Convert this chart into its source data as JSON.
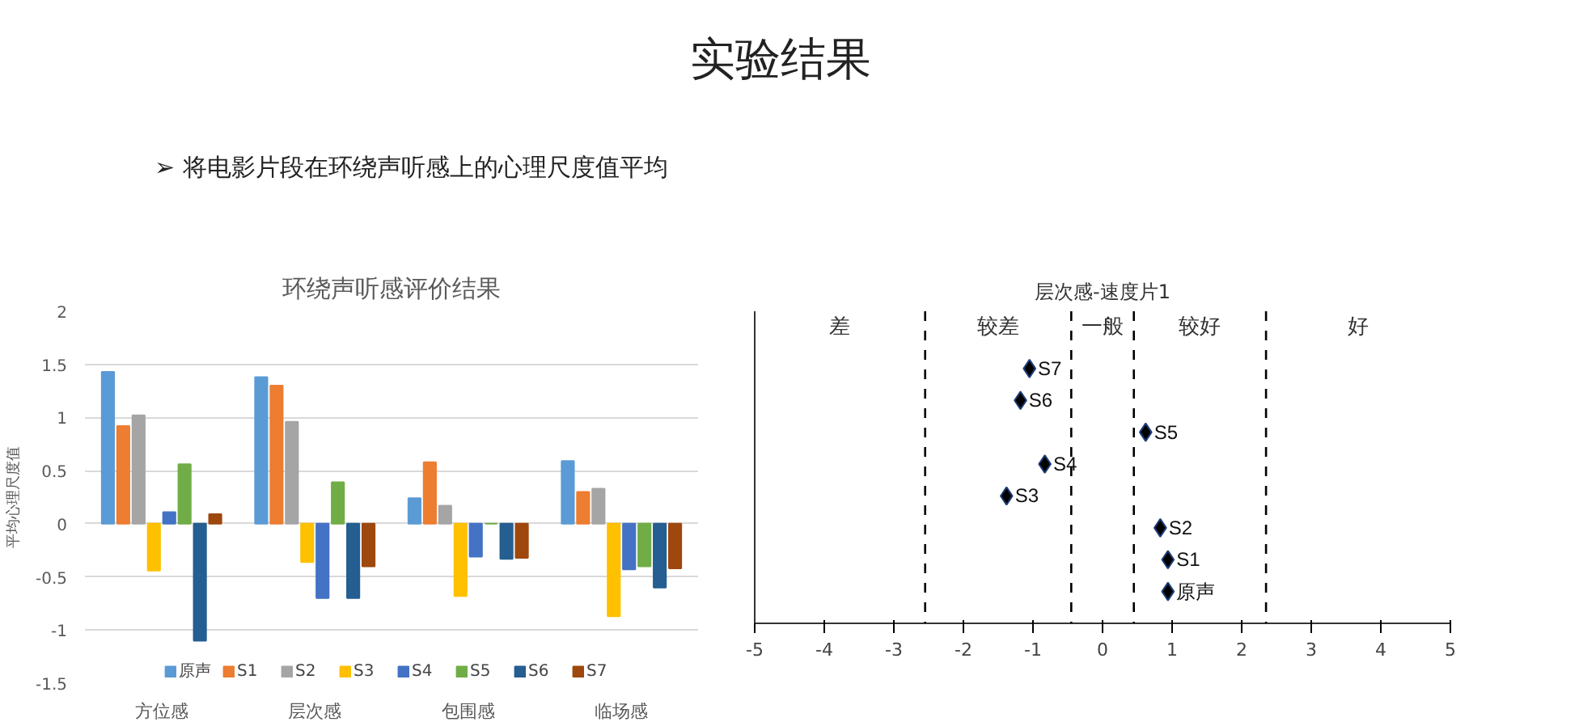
{
  "chart_data": [
    {
      "type": "other",
      "title": "实验结果",
      "annotations": [
        "➢ 将电影片段在环绕声听感上的心理尺度值平均"
      ]
    },
    {
      "type": "bar",
      "title": "环绕声听感评价结果",
      "ylabel": "平均心理尺度值",
      "categories": [
        "方位感",
        "层次感",
        "包围感",
        "临场感"
      ],
      "series": [
        {
          "name": "原声",
          "color": "#5b9bd5",
          "values": [
            1.43,
            1.38,
            0.24,
            0.59
          ]
        },
        {
          "name": "S1",
          "color": "#ed7d31",
          "values": [
            0.92,
            1.3,
            0.58,
            0.3
          ]
        },
        {
          "name": "S2",
          "color": "#a5a5a5",
          "values": [
            1.02,
            0.96,
            0.17,
            0.33
          ]
        },
        {
          "name": "S3",
          "color": "#ffc000",
          "values": [
            -0.44,
            -0.36,
            -0.68,
            -0.87
          ]
        },
        {
          "name": "S4",
          "color": "#4472c4",
          "values": [
            0.11,
            -0.7,
            -0.31,
            -0.43
          ]
        },
        {
          "name": "S5",
          "color": "#70ad47",
          "values": [
            0.56,
            0.39,
            0,
            -0.4
          ]
        },
        {
          "name": "S6",
          "color": "#255e91",
          "values": [
            -1.1,
            -0.7,
            -0.33,
            -0.6
          ]
        },
        {
          "name": "S7",
          "color": "#9e480e",
          "values": [
            0.09,
            -0.4,
            -0.32,
            -0.42
          ]
        }
      ],
      "ylim": [
        -1.5,
        2
      ],
      "yticks": [
        -1.5,
        {
          "value": -1,
          "label": "-1"
        },
        -0.5,
        0,
        0.5,
        1,
        1.5,
        2
      ],
      "grid": "y",
      "legend": "bottom"
    },
    {
      "type": "scatter",
      "title": "层次感-速度片1",
      "orientation": "horizontal",
      "categories": [
        "S7",
        "S6",
        "S5",
        "S4",
        "S3",
        "S2",
        "S1",
        "原声"
      ],
      "values": [
        -1.05,
        -1.18,
        0.62,
        -0.83,
        -1.38,
        0.83,
        0.94,
        0.94
      ],
      "color": "#000000",
      "marker": "diamond",
      "xlim": [
        -5,
        5
      ],
      "xticks": [
        -5,
        -4,
        -3,
        -2,
        -1,
        0,
        1,
        2,
        3,
        4,
        5
      ],
      "tick_labels": "x",
      "grid": false,
      "ref_lines": [
        {
          "axis": "x",
          "value": -2.55,
          "color": "#000000",
          "line_style": "dashed"
        },
        {
          "axis": "x",
          "value": -0.45,
          "color": "#000000",
          "line_style": "dashed"
        },
        {
          "axis": "x",
          "value": 0.45,
          "color": "#000000",
          "line_style": "dashed"
        },
        {
          "axis": "x",
          "value": 2.35,
          "color": "#000000",
          "line_style": "dashed"
        }
      ],
      "annotations": [
        "差",
        "较差",
        "一般",
        "较好",
        "好"
      ]
    }
  ]
}
